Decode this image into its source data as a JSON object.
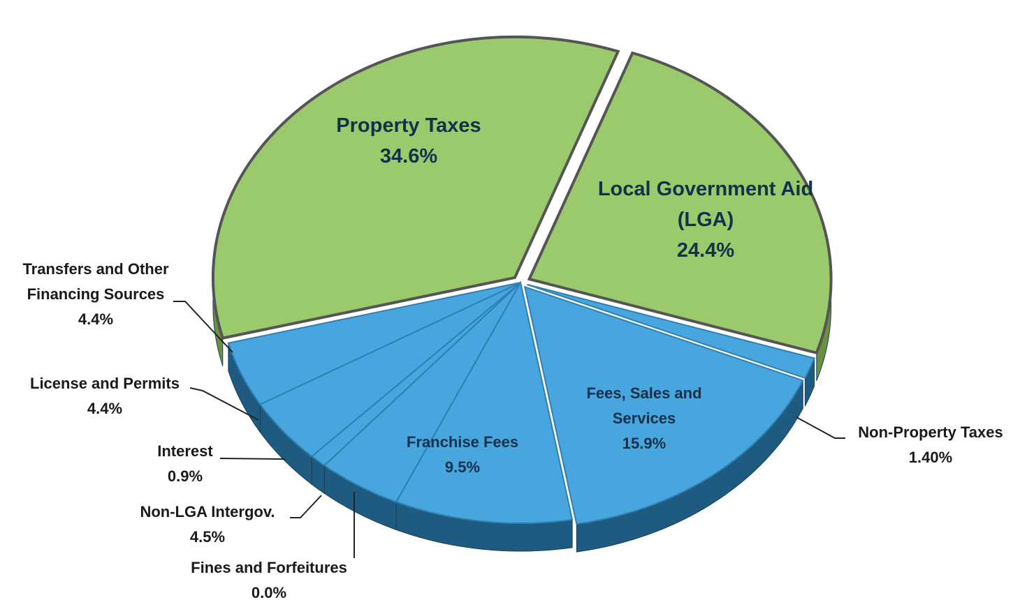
{
  "chart_data": {
    "type": "pie3d",
    "categories": [
      "Local Government Aid (LGA)",
      "Non-Property Taxes",
      "Fees, Sales and Services",
      "Franchise Fees",
      "Fines and Forfeitures",
      "Non-LGA Intergov.",
      "Interest",
      "License and Permits",
      "Transfers and Other Financing Sources",
      "Property Taxes"
    ],
    "values": [
      24.4,
      1.4,
      15.9,
      9.5,
      0.0,
      4.5,
      0.9,
      4.4,
      4.4,
      34.6
    ],
    "value_labels": [
      "24.4%",
      "1.40%",
      "15.9%",
      "9.5%",
      "0.0%",
      "4.5%",
      "0.9%",
      "4.4%",
      "4.4%",
      "34.6%"
    ],
    "colors": [
      "#9bca6c",
      "#48a6df",
      "#48a6df",
      "#48a6df",
      "#48a6df",
      "#48a6df",
      "#48a6df",
      "#48a6df",
      "#48a6df",
      "#9bca6c"
    ]
  }
}
